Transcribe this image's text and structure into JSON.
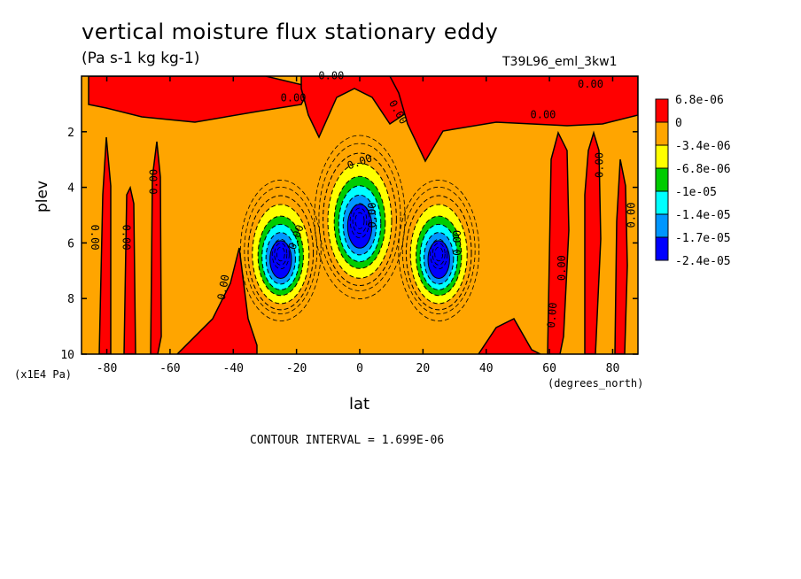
{
  "chart_data": {
    "type": "contour",
    "title": "vertical moisture flux stationary eddy",
    "units": "(Pa s-1 kg kg-1)",
    "run_id": "T39L96_eml_3kw1",
    "xlabel": "lat",
    "x_unit": "(degrees_north)",
    "ylabel": "plev",
    "y_unit": "(x1E4 Pa)",
    "xlim": [
      -88,
      88
    ],
    "ylim": [
      10,
      0
    ],
    "x_ticks": [
      -80,
      -60,
      -40,
      -20,
      0,
      20,
      40,
      60,
      80
    ],
    "y_ticks": [
      2,
      4,
      6,
      8,
      10
    ],
    "contour_interval_label": "CONTOUR INTERVAL = 1.699E-06",
    "contour_label": "0.00",
    "colorbar": {
      "labels": [
        "6.8e-06",
        "0",
        "-3.4e-06",
        "-6.8e-06",
        "-1e-05",
        "-1.4e-05",
        "-1.7e-05",
        "-2.4e-05"
      ],
      "colors": [
        "#ff0000",
        "#ffa500",
        "#ffff00",
        "#00cc00",
        "#00ffff",
        "#0096ff",
        "#0000ff"
      ]
    },
    "features": [
      {
        "type": "min",
        "lat": -25,
        "plev": 6.3,
        "level": "-2.4e-05"
      },
      {
        "type": "min",
        "lat": 0,
        "plev": 5.0,
        "level": "-2.4e-05"
      },
      {
        "type": "min",
        "lat": 25,
        "plev": 6.3,
        "level": "-2.4e-05"
      }
    ]
  }
}
